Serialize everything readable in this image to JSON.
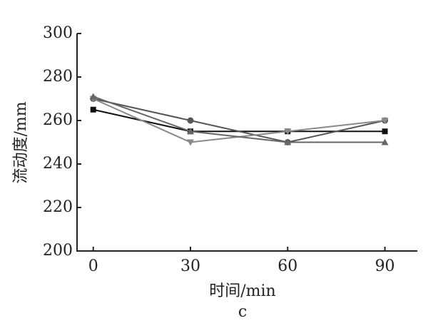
{
  "chart_data": {
    "type": "line",
    "x_label": "时间/min",
    "y_label": "流动度/mm",
    "caption": "c",
    "x": [
      0,
      30,
      60,
      90
    ],
    "series": [
      {
        "color": "#111111",
        "marker": "square",
        "values": [
          265,
          255,
          255,
          255
        ]
      },
      {
        "color": "#555555",
        "marker": "circle",
        "values": [
          270,
          260,
          250,
          260
        ]
      },
      {
        "color": "#888888",
        "marker": "triangle-down",
        "values": [
          270,
          250,
          255,
          260
        ]
      },
      {
        "color": "#666666",
        "marker": "triangle-up",
        "values": [
          271,
          255,
          250,
          250
        ]
      }
    ],
    "xlim": [
      -5,
      100
    ],
    "xticks": [
      0,
      30,
      60,
      90
    ],
    "ylim": [
      200,
      300
    ],
    "yticks": [
      200,
      220,
      240,
      260,
      280,
      300
    ]
  }
}
